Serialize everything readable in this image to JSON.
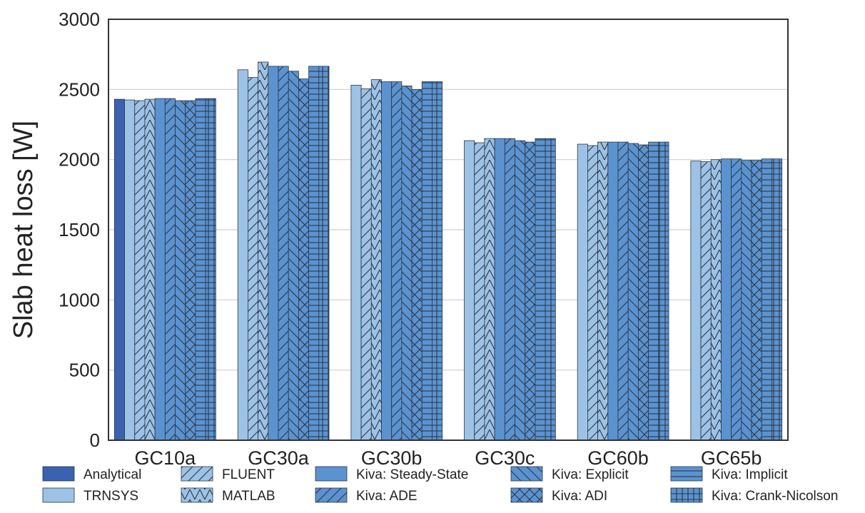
{
  "chart_data": {
    "type": "bar",
    "title": "",
    "xlabel": "",
    "ylabel": "Slab heat loss [W]",
    "ylim": [
      0,
      3000
    ],
    "yticks": [
      0,
      500,
      1000,
      1500,
      2000,
      2500,
      3000
    ],
    "grid": "horizontal",
    "legend_position": "bottom",
    "categories": [
      "GC10a",
      "GC30a",
      "GC30b",
      "GC30c",
      "GC60b",
      "GC65b"
    ],
    "series": [
      {
        "name": "Analytical",
        "color": "#3a62b0",
        "pattern": "none",
        "values": [
          2430,
          null,
          null,
          null,
          null,
          null
        ]
      },
      {
        "name": "TRNSYS",
        "color": "#9cc3e6",
        "pattern": "none",
        "values": [
          2425,
          2640,
          2530,
          2135,
          2110,
          1990
        ]
      },
      {
        "name": "FLUENT",
        "color": "#9cc3e6",
        "pattern": "slash",
        "values": [
          2420,
          2585,
          2505,
          2120,
          2100,
          1985
        ]
      },
      {
        "name": "MATLAB",
        "color": "#9cc3e6",
        "pattern": "chevron",
        "values": [
          2430,
          2695,
          2570,
          2150,
          2125,
          2000
        ]
      },
      {
        "name": "Kiva: Steady-State",
        "color": "#5b93d0",
        "pattern": "none",
        "values": [
          2435,
          2665,
          2555,
          2150,
          2125,
          2005
        ]
      },
      {
        "name": "Kiva: ADE",
        "color": "#5b93d0",
        "pattern": "slash",
        "values": [
          2435,
          2665,
          2555,
          2150,
          2125,
          2005
        ]
      },
      {
        "name": "Kiva: Explicit",
        "color": "#5b93d0",
        "pattern": "backslash",
        "values": [
          2420,
          2630,
          2525,
          2135,
          2115,
          1995
        ]
      },
      {
        "name": "Kiva: ADI",
        "color": "#5b93d0",
        "pattern": "cross",
        "values": [
          2420,
          2575,
          2500,
          2125,
          2105,
          1995
        ]
      },
      {
        "name": "Kiva: Implicit",
        "color": "#5b93d0",
        "pattern": "horizontal",
        "values": [
          2435,
          2665,
          2555,
          2150,
          2125,
          2005
        ]
      },
      {
        "name": "Kiva: Crank-Nicolson",
        "color": "#5b93d0",
        "pattern": "grid",
        "values": [
          2435,
          2665,
          2555,
          2150,
          2125,
          2005
        ]
      }
    ],
    "legend_order": [
      0,
      2,
      4,
      6,
      8,
      1,
      3,
      5,
      7,
      9
    ]
  }
}
